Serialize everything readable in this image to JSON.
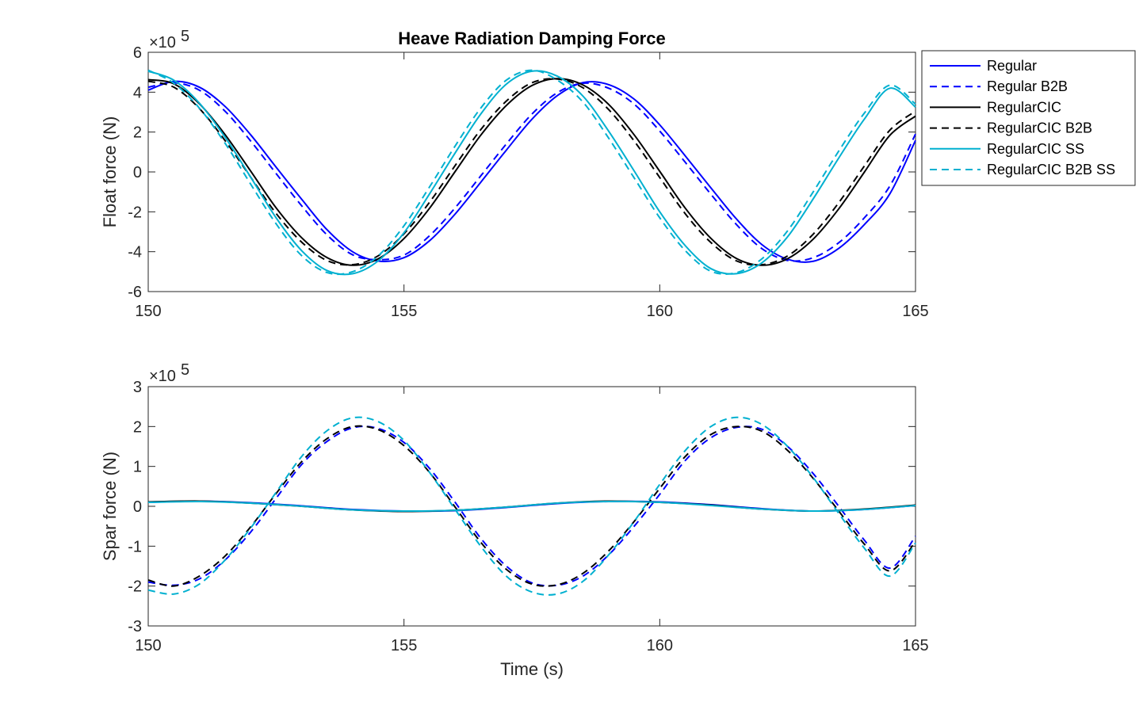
{
  "chart_data": [
    {
      "type": "line",
      "title": "Heave Radiation Damping Force",
      "xlabel": "",
      "ylabel": "Float force (N)",
      "y_multiplier": "×10",
      "y_exponent": "5",
      "xlim": [
        150,
        165
      ],
      "ylim": [
        -6,
        6
      ],
      "xticks": [
        "150",
        "155",
        "160",
        "165"
      ],
      "yticks": [
        "6",
        "4",
        "2",
        "0",
        "-2",
        "-4",
        "-6"
      ],
      "legend_position": "outside top-right",
      "series": [
        {
          "name": "Regular",
          "color": "#0000ff",
          "dash": "solid",
          "x": [
            150,
            150.5,
            151,
            151.5,
            152,
            152.5,
            153,
            153.5,
            154,
            154.5,
            155,
            155.5,
            156,
            156.5,
            157,
            157.5,
            158,
            158.5,
            159,
            159.5,
            160,
            160.5,
            161,
            161.5,
            162,
            162.5,
            163,
            163.5,
            164,
            164.5,
            165
          ],
          "y": [
            4.1,
            4.54,
            4.25,
            3.29,
            1.87,
            0.24,
            -1.37,
            -2.91,
            -4.01,
            -4.47,
            -4.3,
            -3.45,
            -2.11,
            -0.52,
            1.09,
            2.64,
            3.83,
            4.48,
            4.38,
            3.65,
            2.36,
            0.8,
            -0.8,
            -2.36,
            -3.65,
            -4.38,
            -4.48,
            -3.83,
            -2.64,
            -1.09,
            1.58
          ]
        },
        {
          "name": "Regular B2B",
          "color": "#0000ff",
          "dash": "dashed",
          "x": [
            150,
            150.5,
            151,
            151.5,
            152,
            152.5,
            153,
            153.5,
            154,
            154.5,
            155,
            155.5,
            156,
            156.5,
            157,
            157.5,
            158,
            158.5,
            159,
            159.5,
            160,
            160.5,
            161,
            161.5,
            162,
            162.5,
            163,
            163.5,
            164,
            164.5,
            165
          ],
          "y": [
            4.25,
            4.47,
            4.1,
            3.05,
            1.56,
            -0.08,
            -1.7,
            -3.17,
            -4.16,
            -4.4,
            -4.17,
            -3.2,
            -1.8,
            -0.2,
            1.4,
            2.9,
            3.98,
            4.45,
            4.2,
            3.4,
            2.05,
            0.48,
            -1.12,
            -2.64,
            -3.85,
            -4.44,
            -4.3,
            -3.55,
            -2.3,
            -0.7,
            1.9
          ]
        },
        {
          "name": "RegularCIC",
          "color": "#000000",
          "dash": "solid",
          "x": [
            150,
            150.5,
            151,
            151.5,
            152,
            152.5,
            153,
            153.5,
            154,
            154.5,
            155,
            155.5,
            156,
            156.5,
            157,
            157.5,
            158,
            158.5,
            159,
            159.5,
            160,
            160.5,
            161,
            161.5,
            162,
            162.5,
            163,
            163.5,
            164,
            164.5,
            165
          ],
          "y": [
            4.63,
            4.42,
            3.42,
            1.88,
            0.05,
            -1.8,
            -3.3,
            -4.3,
            -4.68,
            -4.35,
            -3.34,
            -1.82,
            0.02,
            1.84,
            3.33,
            4.33,
            4.68,
            4.36,
            3.39,
            1.86,
            0.03,
            -1.82,
            -3.33,
            -4.34,
            -4.68,
            -4.35,
            -3.37,
            -1.85,
            -0.01,
            1.84,
            2.8
          ]
        },
        {
          "name": "RegularCIC B2B",
          "color": "#000000",
          "dash": "dashed",
          "x": [
            150,
            150.5,
            151,
            151.5,
            152,
            152.5,
            153,
            153.5,
            154,
            154.5,
            155,
            155.5,
            156,
            156.5,
            157,
            157.5,
            158,
            158.5,
            159,
            159.5,
            160,
            160.5,
            161,
            161.5,
            162,
            162.5,
            163,
            163.5,
            164,
            164.5,
            165
          ],
          "y": [
            4.55,
            4.25,
            3.18,
            1.58,
            -0.25,
            -2.08,
            -3.52,
            -4.45,
            -4.65,
            -4.2,
            -3.1,
            -1.52,
            0.32,
            2.12,
            3.55,
            4.47,
            4.66,
            4.22,
            3.13,
            1.55,
            -0.28,
            -2.1,
            -3.54,
            -4.46,
            -4.65,
            -4.21,
            -3.12,
            -1.54,
            0.3,
            2.1,
            3.05
          ]
        },
        {
          "name": "RegularCIC SS",
          "color": "#00b0d0",
          "dash": "solid",
          "x": [
            150,
            150.5,
            151,
            151.5,
            152,
            152.5,
            153,
            153.5,
            154,
            154.5,
            155,
            155.5,
            156,
            156.5,
            157,
            157.5,
            158,
            158.5,
            159,
            159.5,
            160,
            160.5,
            161,
            161.5,
            162,
            162.5,
            163,
            163.5,
            164,
            164.5,
            165
          ],
          "y": [
            5.05,
            4.6,
            3.45,
            1.75,
            -0.25,
            -2.3,
            -3.95,
            -4.95,
            -5.1,
            -4.45,
            -3.05,
            -1.1,
            0.95,
            2.9,
            4.4,
            5.05,
            4.8,
            3.8,
            2.05,
            0.05,
            -2.0,
            -3.7,
            -4.85,
            -5.1,
            -4.55,
            -3.25,
            -1.35,
            0.7,
            2.65,
            4.2,
            3.25
          ]
        },
        {
          "name": "RegularCIC B2B SS",
          "color": "#00b0d0",
          "dash": "dashed",
          "x": [
            150,
            150.5,
            151,
            151.5,
            152,
            152.5,
            153,
            153.5,
            154,
            154.5,
            155,
            155.5,
            156,
            156.5,
            157,
            157.5,
            158,
            158.5,
            159,
            159.5,
            160,
            160.5,
            161,
            161.5,
            162,
            162.5,
            163,
            163.5,
            164,
            164.5,
            165
          ],
          "y": [
            5.1,
            4.45,
            3.2,
            1.45,
            -0.6,
            -2.6,
            -4.2,
            -5.05,
            -5.0,
            -4.2,
            -2.7,
            -0.75,
            1.3,
            3.2,
            4.6,
            5.1,
            4.6,
            3.5,
            1.7,
            -0.3,
            -2.3,
            -3.95,
            -4.98,
            -5.05,
            -4.35,
            -2.95,
            -1.0,
            1.05,
            2.95,
            4.35,
            3.4
          ]
        }
      ]
    },
    {
      "type": "line",
      "title": "",
      "xlabel": "Time (s)",
      "ylabel": "Spar force (N)",
      "y_multiplier": "×10",
      "y_exponent": "5",
      "xlim": [
        150,
        165
      ],
      "ylim": [
        -3,
        3
      ],
      "xticks": [
        "150",
        "155",
        "160",
        "165"
      ],
      "yticks": [
        "3",
        "2",
        "1",
        "0",
        "-1",
        "-2",
        "-3"
      ],
      "series": [
        {
          "name": "Regular",
          "color": "#0000ff",
          "dash": "solid",
          "x": [
            150,
            151,
            152,
            153,
            154,
            155,
            156,
            157,
            158,
            159,
            160,
            161,
            162,
            163,
            164,
            165
          ],
          "y": [
            0.1,
            0.13,
            0.09,
            0.01,
            -0.08,
            -0.12,
            -0.11,
            -0.03,
            0.07,
            0.12,
            0.11,
            0.04,
            -0.06,
            -0.12,
            -0.08,
            0.02
          ]
        },
        {
          "name": "Regular B2B",
          "color": "#0000ff",
          "dash": "dashed",
          "x": [
            150,
            150.5,
            151,
            151.5,
            152,
            152.5,
            153,
            153.5,
            154,
            154.5,
            155,
            155.5,
            156,
            156.5,
            157,
            157.5,
            158,
            158.5,
            159,
            159.5,
            160,
            160.5,
            161,
            161.5,
            162,
            162.5,
            163,
            163.5,
            164,
            164.5,
            165
          ],
          "y": [
            -1.9,
            -1.98,
            -1.82,
            -1.35,
            -0.65,
            0.2,
            1.05,
            1.63,
            1.97,
            1.95,
            1.6,
            0.95,
            0.1,
            -0.8,
            -1.5,
            -1.92,
            -1.98,
            -1.75,
            -1.22,
            -0.5,
            0.3,
            1.15,
            1.72,
            1.98,
            1.93,
            1.5,
            0.82,
            0.0,
            -0.85,
            -1.55,
            -0.75
          ]
        },
        {
          "name": "RegularCIC",
          "color": "#000000",
          "dash": "solid",
          "x": [
            150,
            151,
            152,
            153,
            154,
            155,
            156,
            157,
            158,
            159,
            160,
            161,
            162,
            163,
            164,
            165
          ],
          "y": [
            0.11,
            0.13,
            0.08,
            0.0,
            -0.09,
            -0.13,
            -0.1,
            -0.02,
            0.08,
            0.13,
            0.1,
            0.03,
            -0.07,
            -0.12,
            -0.07,
            0.03
          ]
        },
        {
          "name": "RegularCIC B2B",
          "color": "#000000",
          "dash": "dashed",
          "x": [
            150,
            150.5,
            151,
            151.5,
            152,
            152.5,
            153,
            153.5,
            154,
            154.5,
            155,
            155.5,
            156,
            156.5,
            157,
            157.5,
            158,
            158.5,
            159,
            159.5,
            160,
            160.5,
            161,
            161.5,
            162,
            162.5,
            163,
            163.5,
            164,
            164.5,
            165
          ],
          "y": [
            -1.85,
            -2.0,
            -1.75,
            -1.25,
            -0.52,
            0.32,
            1.12,
            1.7,
            2.0,
            1.92,
            1.52,
            0.85,
            -0.02,
            -0.9,
            -1.58,
            -1.95,
            -1.97,
            -1.68,
            -1.12,
            -0.38,
            0.45,
            1.25,
            1.8,
            2.0,
            1.88,
            1.4,
            0.7,
            -0.12,
            -0.95,
            -1.62,
            -0.88
          ]
        },
        {
          "name": "RegularCIC SS",
          "color": "#00b0d0",
          "dash": "solid",
          "x": [
            150,
            151,
            152,
            153,
            154,
            155,
            156,
            157,
            158,
            159,
            160,
            161,
            162,
            163,
            164,
            165
          ],
          "y": [
            0.1,
            0.12,
            0.08,
            0.0,
            -0.09,
            -0.12,
            -0.1,
            -0.02,
            0.08,
            0.12,
            0.1,
            0.02,
            -0.07,
            -0.12,
            -0.08,
            0.02
          ]
        },
        {
          "name": "RegularCIC B2B SS",
          "color": "#00b0d0",
          "dash": "dashed",
          "x": [
            150,
            150.5,
            151,
            151.5,
            152,
            152.5,
            153,
            153.5,
            154,
            154.5,
            155,
            155.5,
            156,
            156.5,
            157,
            157.5,
            158,
            158.5,
            159,
            159.5,
            160,
            160.5,
            161,
            161.5,
            162,
            162.5,
            163,
            163.5,
            164,
            164.5,
            165
          ],
          "y": [
            -2.1,
            -2.2,
            -1.95,
            -1.35,
            -0.55,
            0.35,
            1.25,
            1.9,
            2.22,
            2.12,
            1.65,
            0.85,
            -0.08,
            -1.0,
            -1.75,
            -2.15,
            -2.2,
            -1.88,
            -1.22,
            -0.38,
            0.55,
            1.4,
            2.0,
            2.23,
            2.05,
            1.5,
            0.72,
            -0.18,
            -1.05,
            -1.75,
            -0.92
          ]
        }
      ]
    }
  ]
}
